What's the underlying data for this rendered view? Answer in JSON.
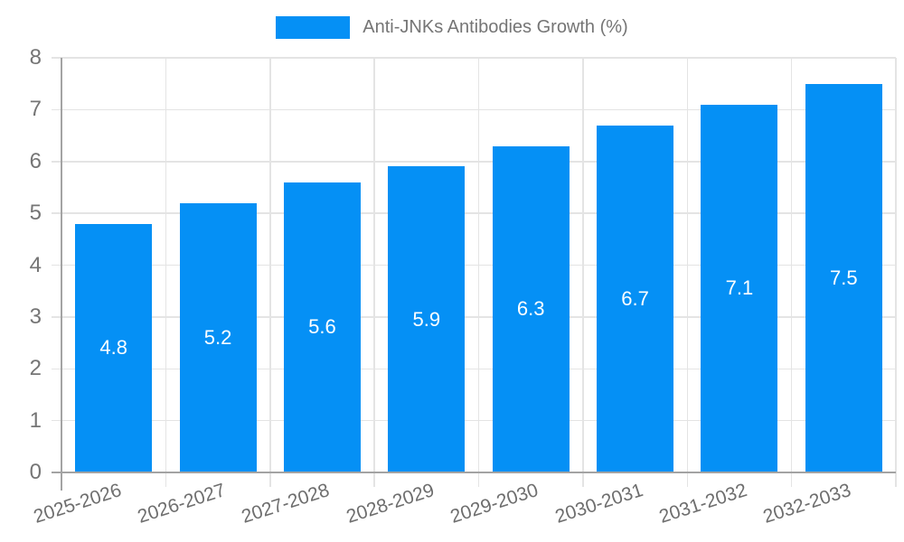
{
  "legend": {
    "label": "Anti-JNKs Antibodies Growth (%)"
  },
  "colors": {
    "bar": "#0590f5",
    "grid": "#e4e4e4",
    "axis": "#a3a3a3",
    "tick_text": "#757575",
    "bar_label_text": "#ffffff"
  },
  "chart_data": {
    "type": "bar",
    "title": "Anti-JNKs Antibodies Growth (%)",
    "categories": [
      "2025-2026",
      "2026-2027",
      "2027-2028",
      "2028-2029",
      "2029-2030",
      "2030-2031",
      "2031-2032",
      "2032-2033"
    ],
    "values": [
      4.8,
      5.2,
      5.6,
      5.9,
      6.3,
      6.7,
      7.1,
      7.5
    ],
    "value_labels": [
      "4.8",
      "5.2",
      "5.6",
      "5.9",
      "6.3",
      "6.7",
      "7.1",
      "7.5"
    ],
    "xlabel": "",
    "ylabel": "",
    "ylim": [
      0,
      8
    ],
    "yticks": [
      0,
      1,
      2,
      3,
      4,
      5,
      6,
      7,
      8
    ],
    "grid": "horizontal-and-vertical",
    "legend_position": "top-center",
    "value_label_position": "inside-middle"
  }
}
